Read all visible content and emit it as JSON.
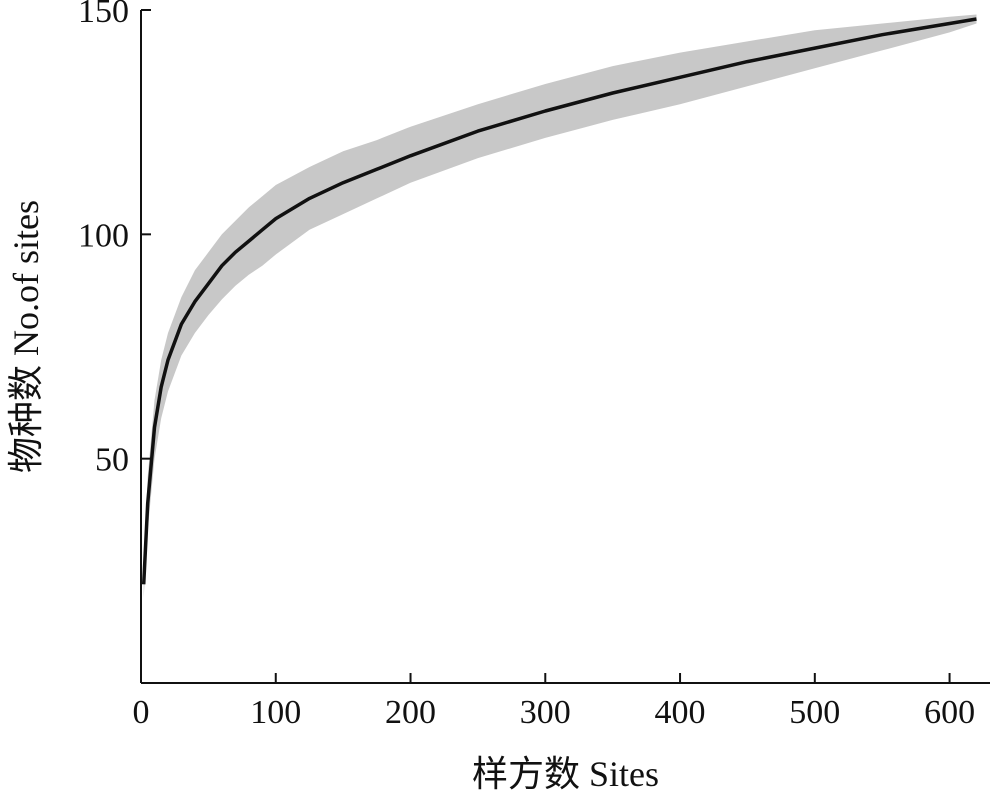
{
  "chart_data": {
    "type": "area",
    "title": "",
    "xlabel": "样方数 Sites",
    "ylabel": "物种数 No.of sites",
    "xlim": [
      0,
      630
    ],
    "ylim": [
      0,
      150
    ],
    "xticks": [
      0,
      100,
      200,
      300,
      400,
      500,
      600
    ],
    "yticks": [
      50,
      100,
      150
    ],
    "grid": false,
    "legend": "none",
    "colors": {
      "line": "#111111",
      "band": "#c8c8c8"
    },
    "series": [
      {
        "role": "mean",
        "x": [
          2,
          5,
          10,
          15,
          20,
          30,
          40,
          50,
          60,
          70,
          80,
          90,
          100,
          125,
          150,
          175,
          200,
          250,
          300,
          350,
          400,
          450,
          500,
          550,
          600,
          620
        ],
        "y": [
          22,
          40,
          57,
          66,
          72,
          80,
          85,
          89,
          93,
          96,
          98.5,
          101,
          103.5,
          108,
          111.5,
          114.5,
          117.5,
          123,
          127.5,
          131.5,
          135,
          138.5,
          141.5,
          144.5,
          147,
          148
        ]
      },
      {
        "role": "upper",
        "x": [
          2,
          5,
          10,
          15,
          20,
          30,
          40,
          50,
          60,
          70,
          80,
          90,
          100,
          125,
          150,
          175,
          200,
          250,
          300,
          350,
          400,
          450,
          500,
          550,
          600,
          620
        ],
        "y": [
          26,
          46,
          63,
          72,
          78,
          86,
          92,
          96,
          100,
          103,
          106,
          108.5,
          111,
          115,
          118.5,
          121,
          124,
          129,
          133.5,
          137.5,
          140.5,
          143,
          145.5,
          147,
          148.5,
          149
        ]
      },
      {
        "role": "lower",
        "x": [
          2,
          5,
          10,
          15,
          20,
          30,
          40,
          50,
          60,
          70,
          80,
          90,
          100,
          125,
          150,
          175,
          200,
          250,
          300,
          350,
          400,
          450,
          500,
          550,
          600,
          620
        ],
        "y": [
          19,
          34,
          50,
          59,
          65,
          73,
          78,
          82,
          85.5,
          88.5,
          91,
          93,
          95.5,
          101,
          104.5,
          108,
          111.5,
          117,
          121.5,
          125.5,
          129,
          133,
          137,
          141,
          145,
          147
        ]
      }
    ]
  }
}
